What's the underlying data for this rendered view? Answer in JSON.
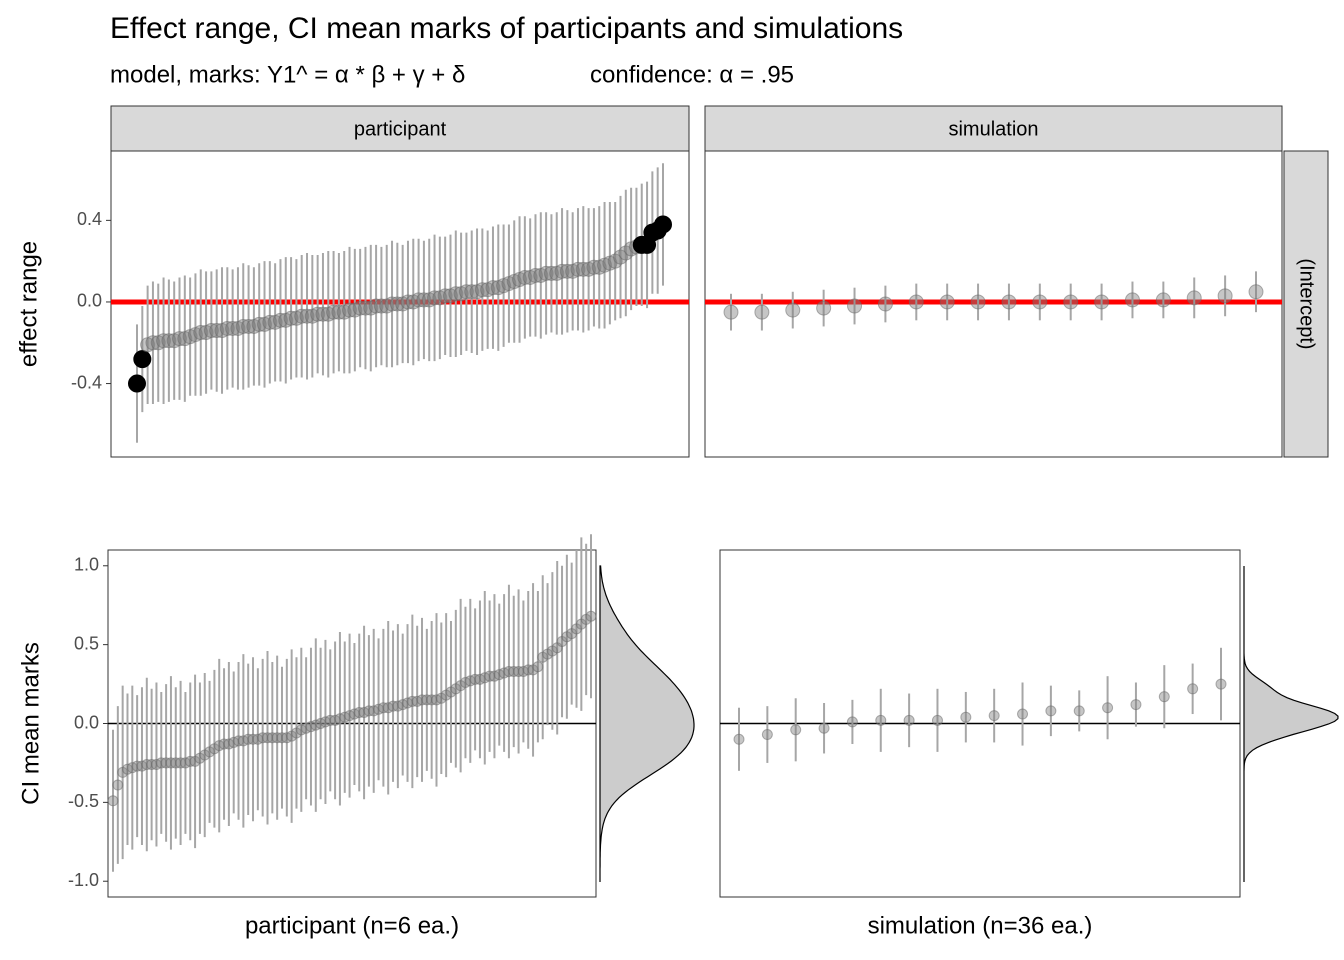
{
  "header": {
    "title": "Effect range, CI mean marks of participants and simulations",
    "subtitle": [
      "model, marks: Y1^ = α * β + γ + δ",
      "confidence: α = .95"
    ]
  },
  "chart_data": [
    {
      "type": "pointrange",
      "strip": "participant",
      "y_label": "effect range",
      "ylim": [
        -0.76,
        0.74
      ],
      "yticks": [
        {
          "value": 0.4,
          "label": "0.4"
        },
        {
          "value": 0,
          "label": "0.0"
        },
        {
          "value": -0.4,
          "label": "-0.4"
        }
      ],
      "hline": 0,
      "hline_color": "#ff0000",
      "point_color": "#808080",
      "highlight_color": "#000000",
      "highlighted": [
        0,
        1,
        95,
        96,
        97,
        98,
        99
      ],
      "values": [
        -0.4,
        -0.28,
        -0.21,
        -0.2,
        -0.2,
        -0.19,
        -0.19,
        -0.19,
        -0.18,
        -0.18,
        -0.17,
        -0.16,
        -0.15,
        -0.15,
        -0.14,
        -0.14,
        -0.14,
        -0.13,
        -0.13,
        -0.13,
        -0.12,
        -0.12,
        -0.12,
        -0.11,
        -0.11,
        -0.1,
        -0.1,
        -0.09,
        -0.09,
        -0.08,
        -0.08,
        -0.07,
        -0.07,
        -0.07,
        -0.06,
        -0.06,
        -0.06,
        -0.05,
        -0.05,
        -0.05,
        -0.04,
        -0.04,
        -0.03,
        -0.03,
        -0.03,
        -0.02,
        -0.02,
        -0.02,
        -0.01,
        -0.01,
        -0.01,
        0,
        0,
        0.01,
        0.01,
        0.01,
        0.02,
        0.02,
        0.03,
        0.03,
        0.04,
        0.04,
        0.05,
        0.05,
        0.05,
        0.06,
        0.06,
        0.07,
        0.07,
        0.08,
        0.09,
        0.1,
        0.11,
        0.12,
        0.12,
        0.13,
        0.13,
        0.14,
        0.14,
        0.14,
        0.15,
        0.15,
        0.15,
        0.16,
        0.16,
        0.16,
        0.17,
        0.17,
        0.18,
        0.19,
        0.2,
        0.22,
        0.24,
        0.26,
        0.27,
        0.28,
        0.28,
        0.34,
        0.35,
        0.38
      ],
      "errors": [
        0.29,
        0.26,
        0.29,
        0.3,
        0.29,
        0.31,
        0.3,
        0.29,
        0.3,
        0.31,
        0.29,
        0.3,
        0.31,
        0.3,
        0.29,
        0.3,
        0.31,
        0.3,
        0.29,
        0.3,
        0.31,
        0.3,
        0.29,
        0.3,
        0.31,
        0.3,
        0.29,
        0.3,
        0.31,
        0.3,
        0.29,
        0.3,
        0.31,
        0.3,
        0.29,
        0.3,
        0.31,
        0.3,
        0.29,
        0.3,
        0.31,
        0.3,
        0.29,
        0.3,
        0.31,
        0.3,
        0.29,
        0.3,
        0.31,
        0.3,
        0.29,
        0.3,
        0.31,
        0.3,
        0.29,
        0.3,
        0.31,
        0.3,
        0.29,
        0.3,
        0.31,
        0.3,
        0.29,
        0.3,
        0.31,
        0.3,
        0.29,
        0.3,
        0.31,
        0.3,
        0.29,
        0.3,
        0.31,
        0.3,
        0.29,
        0.3,
        0.31,
        0.3,
        0.29,
        0.3,
        0.31,
        0.3,
        0.29,
        0.3,
        0.31,
        0.3,
        0.29,
        0.3,
        0.31,
        0.3,
        0.29,
        0.3,
        0.31,
        0.3,
        0.29,
        0.3,
        0.31,
        0.3,
        0.31,
        0.3
      ]
    },
    {
      "type": "pointrange",
      "strip": "simulation",
      "right_strip": "(Intercept)",
      "ylim": [
        -0.76,
        0.74
      ],
      "hline": 0,
      "hline_color": "#ff0000",
      "point_color": "#808080",
      "values": [
        -0.05,
        -0.05,
        -0.04,
        -0.03,
        -0.02,
        -0.01,
        0,
        0,
        0,
        0,
        0,
        0,
        0,
        0.01,
        0.01,
        0.02,
        0.03,
        0.05
      ],
      "errors": [
        0.09,
        0.09,
        0.09,
        0.09,
        0.09,
        0.09,
        0.09,
        0.09,
        0.09,
        0.09,
        0.09,
        0.09,
        0.09,
        0.09,
        0.09,
        0.1,
        0.1,
        0.1
      ]
    },
    {
      "type": "pointrange",
      "y_label": "CI mean marks",
      "x_label": "participant (n=6 ea.)",
      "ylim": [
        -1.1,
        1.1
      ],
      "yticks": [
        {
          "value": 1,
          "label": "1.0"
        },
        0.5,
        {
          "value": 0,
          "label": "0.0"
        },
        -0.5,
        {
          "value": -1,
          "label": "-1.0"
        }
      ],
      "hline": 0,
      "hline_color": "#000000",
      "point_color": "#808080",
      "density": true,
      "values": [
        -0.49,
        -0.39,
        -0.31,
        -0.29,
        -0.28,
        -0.27,
        -0.27,
        -0.26,
        -0.26,
        -0.26,
        -0.25,
        -0.25,
        -0.25,
        -0.25,
        -0.25,
        -0.25,
        -0.24,
        -0.24,
        -0.22,
        -0.2,
        -0.18,
        -0.16,
        -0.14,
        -0.13,
        -0.13,
        -0.12,
        -0.11,
        -0.11,
        -0.1,
        -0.1,
        -0.1,
        -0.09,
        -0.09,
        -0.09,
        -0.09,
        -0.09,
        -0.09,
        -0.08,
        -0.06,
        -0.04,
        -0.03,
        -0.02,
        -0.01,
        0,
        0.01,
        0.02,
        0.02,
        0.03,
        0.04,
        0.05,
        0.06,
        0.07,
        0.07,
        0.08,
        0.08,
        0.09,
        0.1,
        0.1,
        0.11,
        0.11,
        0.12,
        0.13,
        0.14,
        0.14,
        0.15,
        0.15,
        0.15,
        0.15,
        0.16,
        0.18,
        0.2,
        0.22,
        0.24,
        0.26,
        0.27,
        0.28,
        0.28,
        0.29,
        0.3,
        0.3,
        0.31,
        0.32,
        0.33,
        0.33,
        0.33,
        0.33,
        0.34,
        0.34,
        0.36,
        0.42,
        0.44,
        0.46,
        0.48,
        0.52,
        0.55,
        0.57,
        0.6,
        0.63,
        0.66,
        0.68
      ],
      "errors": [
        0.45,
        0.5,
        0.55,
        0.48,
        0.52,
        0.45,
        0.5,
        0.55,
        0.48,
        0.52,
        0.45,
        0.5,
        0.55,
        0.48,
        0.52,
        0.45,
        0.5,
        0.55,
        0.48,
        0.52,
        0.45,
        0.5,
        0.55,
        0.48,
        0.52,
        0.45,
        0.5,
        0.55,
        0.48,
        0.52,
        0.45,
        0.5,
        0.55,
        0.48,
        0.52,
        0.45,
        0.5,
        0.55,
        0.48,
        0.52,
        0.45,
        0.5,
        0.55,
        0.48,
        0.52,
        0.45,
        0.5,
        0.55,
        0.48,
        0.52,
        0.45,
        0.5,
        0.55,
        0.48,
        0.52,
        0.45,
        0.5,
        0.55,
        0.48,
        0.52,
        0.45,
        0.5,
        0.55,
        0.48,
        0.52,
        0.45,
        0.5,
        0.55,
        0.48,
        0.52,
        0.45,
        0.5,
        0.55,
        0.48,
        0.52,
        0.45,
        0.5,
        0.55,
        0.48,
        0.52,
        0.45,
        0.5,
        0.55,
        0.48,
        0.52,
        0.45,
        0.5,
        0.55,
        0.48,
        0.52,
        0.45,
        0.5,
        0.55,
        0.48,
        0.52,
        0.45,
        0.5,
        0.55,
        0.48,
        0.52
      ]
    },
    {
      "type": "pointrange",
      "x_label": "simulation (n=36 ea.)",
      "ylim": [
        -1.1,
        1.1
      ],
      "hline": 0,
      "hline_color": "#000000",
      "point_color": "#808080",
      "density": true,
      "values": [
        -0.1,
        -0.07,
        -0.04,
        -0.03,
        0.01,
        0.02,
        0.02,
        0.02,
        0.04,
        0.05,
        0.06,
        0.08,
        0.08,
        0.1,
        0.12,
        0.17,
        0.22,
        0.25
      ],
      "errors": [
        0.2,
        0.18,
        0.2,
        0.16,
        0.14,
        0.2,
        0.17,
        0.2,
        0.16,
        0.17,
        0.2,
        0.16,
        0.13,
        0.2,
        0.14,
        0.2,
        0.16,
        0.23
      ]
    }
  ]
}
